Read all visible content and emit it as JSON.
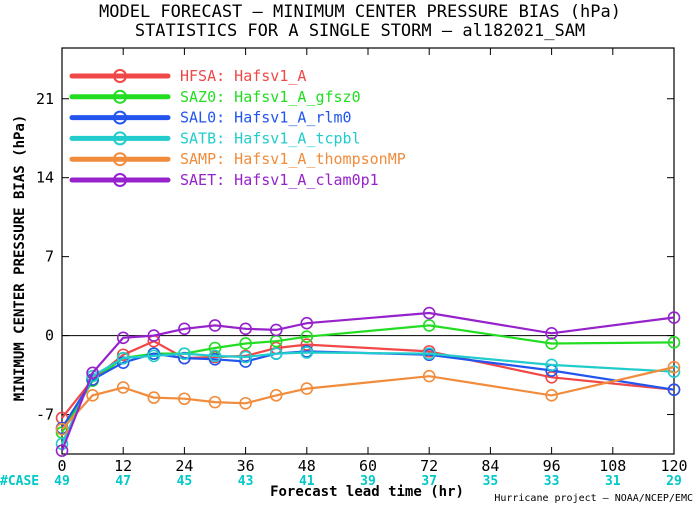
{
  "chart_data": {
    "type": "line",
    "title": "MODEL FORECAST — MINIMUM CENTER PRESSURE BIAS (hPa)",
    "subtitle": "STATISTICS FOR A SINGLE STORM — al182021_SAM",
    "xlabel": "Forecast lead time (hr)",
    "ylabel": "MINIMUM CENTER PRESSURE BIAS (hPa)",
    "xlim": [
      0,
      120
    ],
    "ylim": [
      -10.5,
      25.5
    ],
    "xticks": [
      0,
      12,
      24,
      36,
      48,
      60,
      72,
      84,
      96,
      108,
      120
    ],
    "yticks": [
      -7,
      0,
      7,
      14,
      21
    ],
    "legend_position": "top-left",
    "zero_line": true,
    "case_label": "#CASE",
    "case_color": "#00c8c8",
    "cases": [
      "49",
      "47",
      "45",
      "43",
      "41",
      "39",
      "37",
      "35",
      "33",
      "31",
      "29"
    ],
    "credit": "Hurricane project — NOAA/NCEP/EMC",
    "series": [
      {
        "code": "HFSA",
        "name": "Hafsv1_A",
        "color": "#f04848",
        "x": [
          0,
          6,
          12,
          18,
          24,
          30,
          36,
          42,
          48,
          72,
          96,
          120
        ],
        "y": [
          -7.3,
          -3.9,
          -1.7,
          -0.5,
          -2.0,
          -1.9,
          -1.8,
          -1.1,
          -0.8,
          -1.4,
          -3.7,
          -4.8
        ]
      },
      {
        "code": "SAZ0",
        "name": "Hafsv1_A_gfsz0",
        "color": "#22dd22",
        "x": [
          0,
          6,
          12,
          18,
          24,
          30,
          36,
          42,
          48,
          72,
          96,
          120
        ],
        "y": [
          -8.6,
          -4.0,
          -2.0,
          -1.6,
          -1.6,
          -1.1,
          -0.7,
          -0.5,
          -0.1,
          0.9,
          -0.7,
          -0.6
        ]
      },
      {
        "code": "SAL0",
        "name": "Hafsv1_A_rlm0",
        "color": "#2255ee",
        "x": [
          0,
          6,
          12,
          18,
          24,
          30,
          36,
          42,
          48,
          72,
          96,
          120
        ],
        "y": [
          -8.2,
          -3.9,
          -2.4,
          -1.6,
          -2.0,
          -2.1,
          -2.3,
          -1.6,
          -1.4,
          -1.7,
          -3.1,
          -4.8
        ]
      },
      {
        "code": "SATB",
        "name": "Hafsv1_A_tcpbl",
        "color": "#22cccc",
        "x": [
          0,
          6,
          12,
          18,
          24,
          30,
          36,
          42,
          48,
          72,
          96,
          120
        ],
        "y": [
          -9.6,
          -3.6,
          -2.0,
          -1.8,
          -1.6,
          -1.8,
          -1.9,
          -1.6,
          -1.5,
          -1.6,
          -2.6,
          -3.2
        ]
      },
      {
        "code": "SAMP",
        "name": "Hafsv1_A_thompsonMP",
        "color": "#f08c3c",
        "x": [
          0,
          6,
          12,
          18,
          24,
          30,
          36,
          42,
          48,
          72,
          96,
          120
        ],
        "y": [
          -8.3,
          -5.3,
          -4.6,
          -5.5,
          -5.6,
          -5.9,
          -6.0,
          -5.3,
          -4.7,
          -3.6,
          -5.3,
          -2.8
        ]
      },
      {
        "code": "SAET",
        "name": "Hafsv1_A_clam0p1",
        "color": "#9622cc",
        "x": [
          0,
          6,
          12,
          18,
          24,
          30,
          36,
          42,
          48,
          72,
          96,
          120
        ],
        "y": [
          -10.2,
          -3.3,
          -0.2,
          0.0,
          0.6,
          0.9,
          0.6,
          0.5,
          1.1,
          2.0,
          0.2,
          1.6
        ]
      }
    ]
  }
}
